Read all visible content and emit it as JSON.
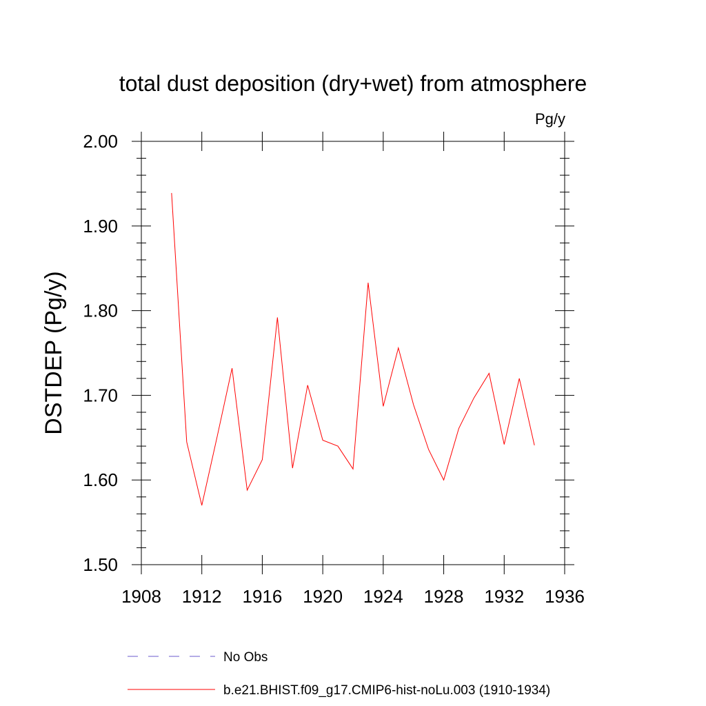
{
  "chart_data": {
    "type": "line",
    "title": "total dust deposition (dry+wet) from atmosphere",
    "units": "Pg/y",
    "ylabel": "DSTDEP  (Pg/y)",
    "xlabel": "",
    "xlim": [
      1908,
      1936
    ],
    "ylim": [
      1.5,
      2.0
    ],
    "x_ticks": [
      "1908",
      "1912",
      "1916",
      "1920",
      "1924",
      "1928",
      "1932",
      "1936"
    ],
    "y_ticks": [
      "1.50",
      "1.60",
      "1.70",
      "1.80",
      "1.90",
      "2.00"
    ],
    "grid": false,
    "legend_position": "bottom",
    "series": [
      {
        "name": "b.e21.BHIST.f09_g17.CMIP6-hist-noLu.003 (1910-1934)",
        "color": "#ff0000",
        "dash": "solid",
        "x": [
          1910,
          1911,
          1912,
          1913,
          1914,
          1915,
          1916,
          1917,
          1918,
          1919,
          1920,
          1921,
          1922,
          1923,
          1924,
          1925,
          1926,
          1927,
          1928,
          1929,
          1930,
          1931,
          1932,
          1933,
          1934
        ],
        "y": [
          1.939,
          1.645,
          1.57,
          1.65,
          1.732,
          1.588,
          1.624,
          1.792,
          1.614,
          1.712,
          1.647,
          1.64,
          1.613,
          1.833,
          1.687,
          1.756,
          1.689,
          1.636,
          1.6,
          1.661,
          1.697,
          1.726,
          1.642,
          1.72,
          1.641
        ]
      }
    ],
    "legend": [
      {
        "label": "No Obs",
        "color": "#6a5acd",
        "dash": "dashed"
      },
      {
        "label": "b.e21.BHIST.f09_g17.CMIP6-hist-noLu.003 (1910-1934)",
        "color": "#ff0000",
        "dash": "solid"
      }
    ]
  }
}
